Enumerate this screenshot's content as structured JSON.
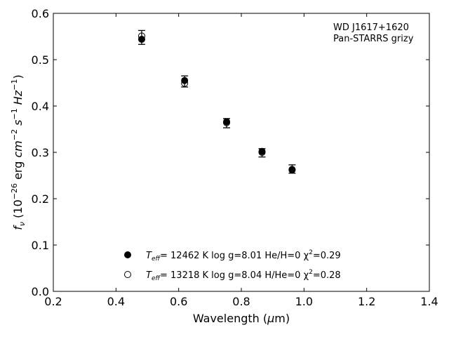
{
  "chart_data": {
    "type": "scatter",
    "xlabel": "Wavelength (μm)",
    "ylabel": "f_ν (10^-26 erg cm^-2 s^-1 Hz^-1)",
    "xlim": [
      0.2,
      1.4
    ],
    "ylim": [
      0.0,
      0.6
    ],
    "x_ticks": [
      "0.2",
      "0.4",
      "0.6",
      "0.8",
      "1.0",
      "1.2",
      "1.4"
    ],
    "y_ticks": [
      "0.0",
      "0.1",
      "0.2",
      "0.3",
      "0.4",
      "0.5",
      "0.6"
    ],
    "grid": false,
    "legend_position": "lower-center",
    "annotation": [
      "WD J1617+1620",
      "Pan-STARRS grizy"
    ],
    "observed": {
      "x": [
        0.482,
        0.619,
        0.753,
        0.866,
        0.962
      ],
      "y": [
        0.548,
        0.453,
        0.363,
        0.299,
        0.264
      ],
      "err": [
        0.015,
        0.012,
        0.01,
        0.009,
        0.009
      ]
    },
    "series": [
      {
        "marker": "filled-circle",
        "legend": [
          "T",
          "eff",
          "= 12462 K  log g=8.01  He/H=0  χ",
          "2",
          "=0.29"
        ],
        "x": [
          0.482,
          0.619,
          0.753,
          0.866,
          0.962
        ],
        "y": [
          0.544,
          0.455,
          0.366,
          0.302,
          0.262
        ]
      },
      {
        "marker": "open-circle",
        "legend": [
          "T",
          "eff",
          "= 13218 K  log g=8.04  H/He=0  χ",
          "2",
          "=0.28"
        ],
        "x": [
          0.482,
          0.619,
          0.753,
          0.866,
          0.962
        ],
        "y": [
          0.551,
          0.449,
          0.364,
          0.3,
          0.263
        ]
      }
    ]
  }
}
